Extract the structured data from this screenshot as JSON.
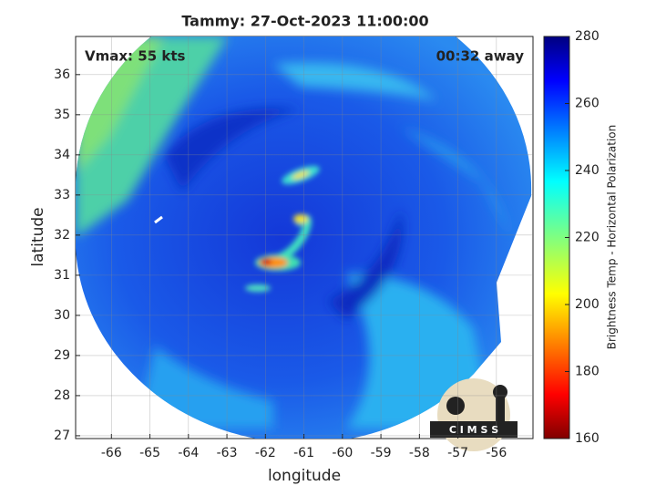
{
  "chart_data": {
    "type": "satellite-image",
    "title": "Tammy: 27-Oct-2023 11:00:00",
    "annotations": [
      "Vmax: 55 kts",
      "00:32 away"
    ],
    "x_label": "longitude",
    "y_label": "latitude",
    "xlim": [
      -66.93,
      -55.05
    ],
    "xticks": [
      -66,
      -65,
      -64,
      -63,
      -62,
      -61,
      -60,
      -59,
      -58,
      -57,
      -56
    ],
    "ylim": [
      26.93,
      36.95
    ],
    "yticks": [
      27,
      28,
      29,
      30,
      31,
      32,
      33,
      34,
      35,
      36
    ],
    "grid": true,
    "colorbar_label": "Brightness Temp - Horizontal Polarization",
    "clim": [
      160,
      280
    ],
    "cticks": [
      160,
      180,
      200,
      220,
      240,
      260,
      280
    ],
    "logo": "C I M S S"
  }
}
